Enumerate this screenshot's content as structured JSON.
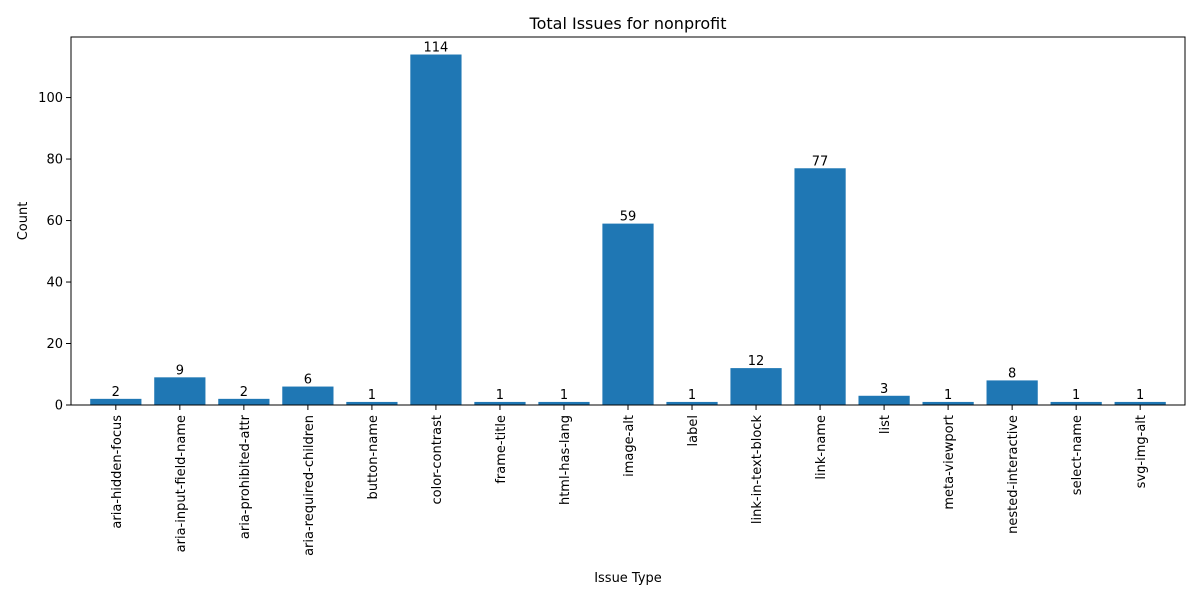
{
  "chart_data": {
    "type": "bar",
    "title": "Total Issues for nonprofit",
    "xlabel": "Issue Type",
    "ylabel": "Count",
    "categories": [
      "aria-hidden-focus",
      "aria-input-field-name",
      "aria-prohibited-attr",
      "aria-required-children",
      "button-name",
      "color-contrast",
      "frame-title",
      "html-has-lang",
      "image-alt",
      "label",
      "link-in-text-block",
      "link-name",
      "list",
      "meta-viewport",
      "nested-interactive",
      "select-name",
      "svg-img-alt"
    ],
    "values": [
      2,
      9,
      2,
      6,
      1,
      114,
      1,
      1,
      59,
      1,
      12,
      77,
      3,
      1,
      8,
      1,
      1
    ],
    "data_labels": [
      "2",
      "9",
      "2",
      "6",
      "1",
      "114",
      "1",
      "1",
      "59",
      "1",
      "12",
      "77",
      "3",
      "1",
      "8",
      "1",
      "1"
    ],
    "ylim": [
      0,
      119.7
    ],
    "yticks": [
      0,
      20,
      40,
      60,
      80,
      100
    ],
    "ytick_labels": [
      "0",
      "20",
      "40",
      "60",
      "80",
      "100"
    ],
    "grid": false,
    "bar_color": "#1f77b4"
  }
}
